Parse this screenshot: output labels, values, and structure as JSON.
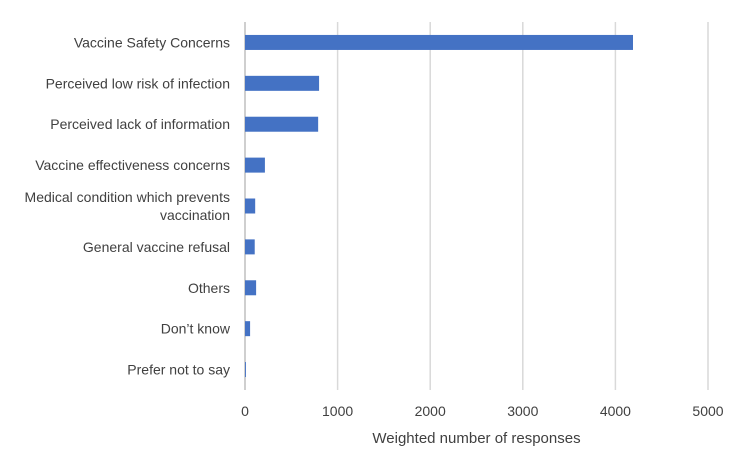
{
  "chart_data": {
    "type": "bar",
    "orientation": "horizontal",
    "title": "",
    "xlabel": "Weighted number of responses",
    "ylabel": "",
    "xlim": [
      0,
      5000
    ],
    "xticks": [
      0,
      1000,
      2000,
      3000,
      4000,
      5000
    ],
    "grid": true,
    "legend": "none",
    "bar_color": "#4472c4",
    "categories": [
      [
        "Vaccine Safety Concerns"
      ],
      [
        "Perceived low risk of infection"
      ],
      [
        "Perceived lack of information"
      ],
      [
        "Vaccine effectiveness concerns"
      ],
      [
        "Medical condition which prevents",
        "vaccination"
      ],
      [
        "General vaccine refusal"
      ],
      [
        "Others"
      ],
      [
        "Don’t know"
      ],
      [
        "Prefer not to say"
      ]
    ],
    "values": [
      4190,
      800,
      790,
      215,
      110,
      105,
      120,
      55,
      10
    ]
  }
}
